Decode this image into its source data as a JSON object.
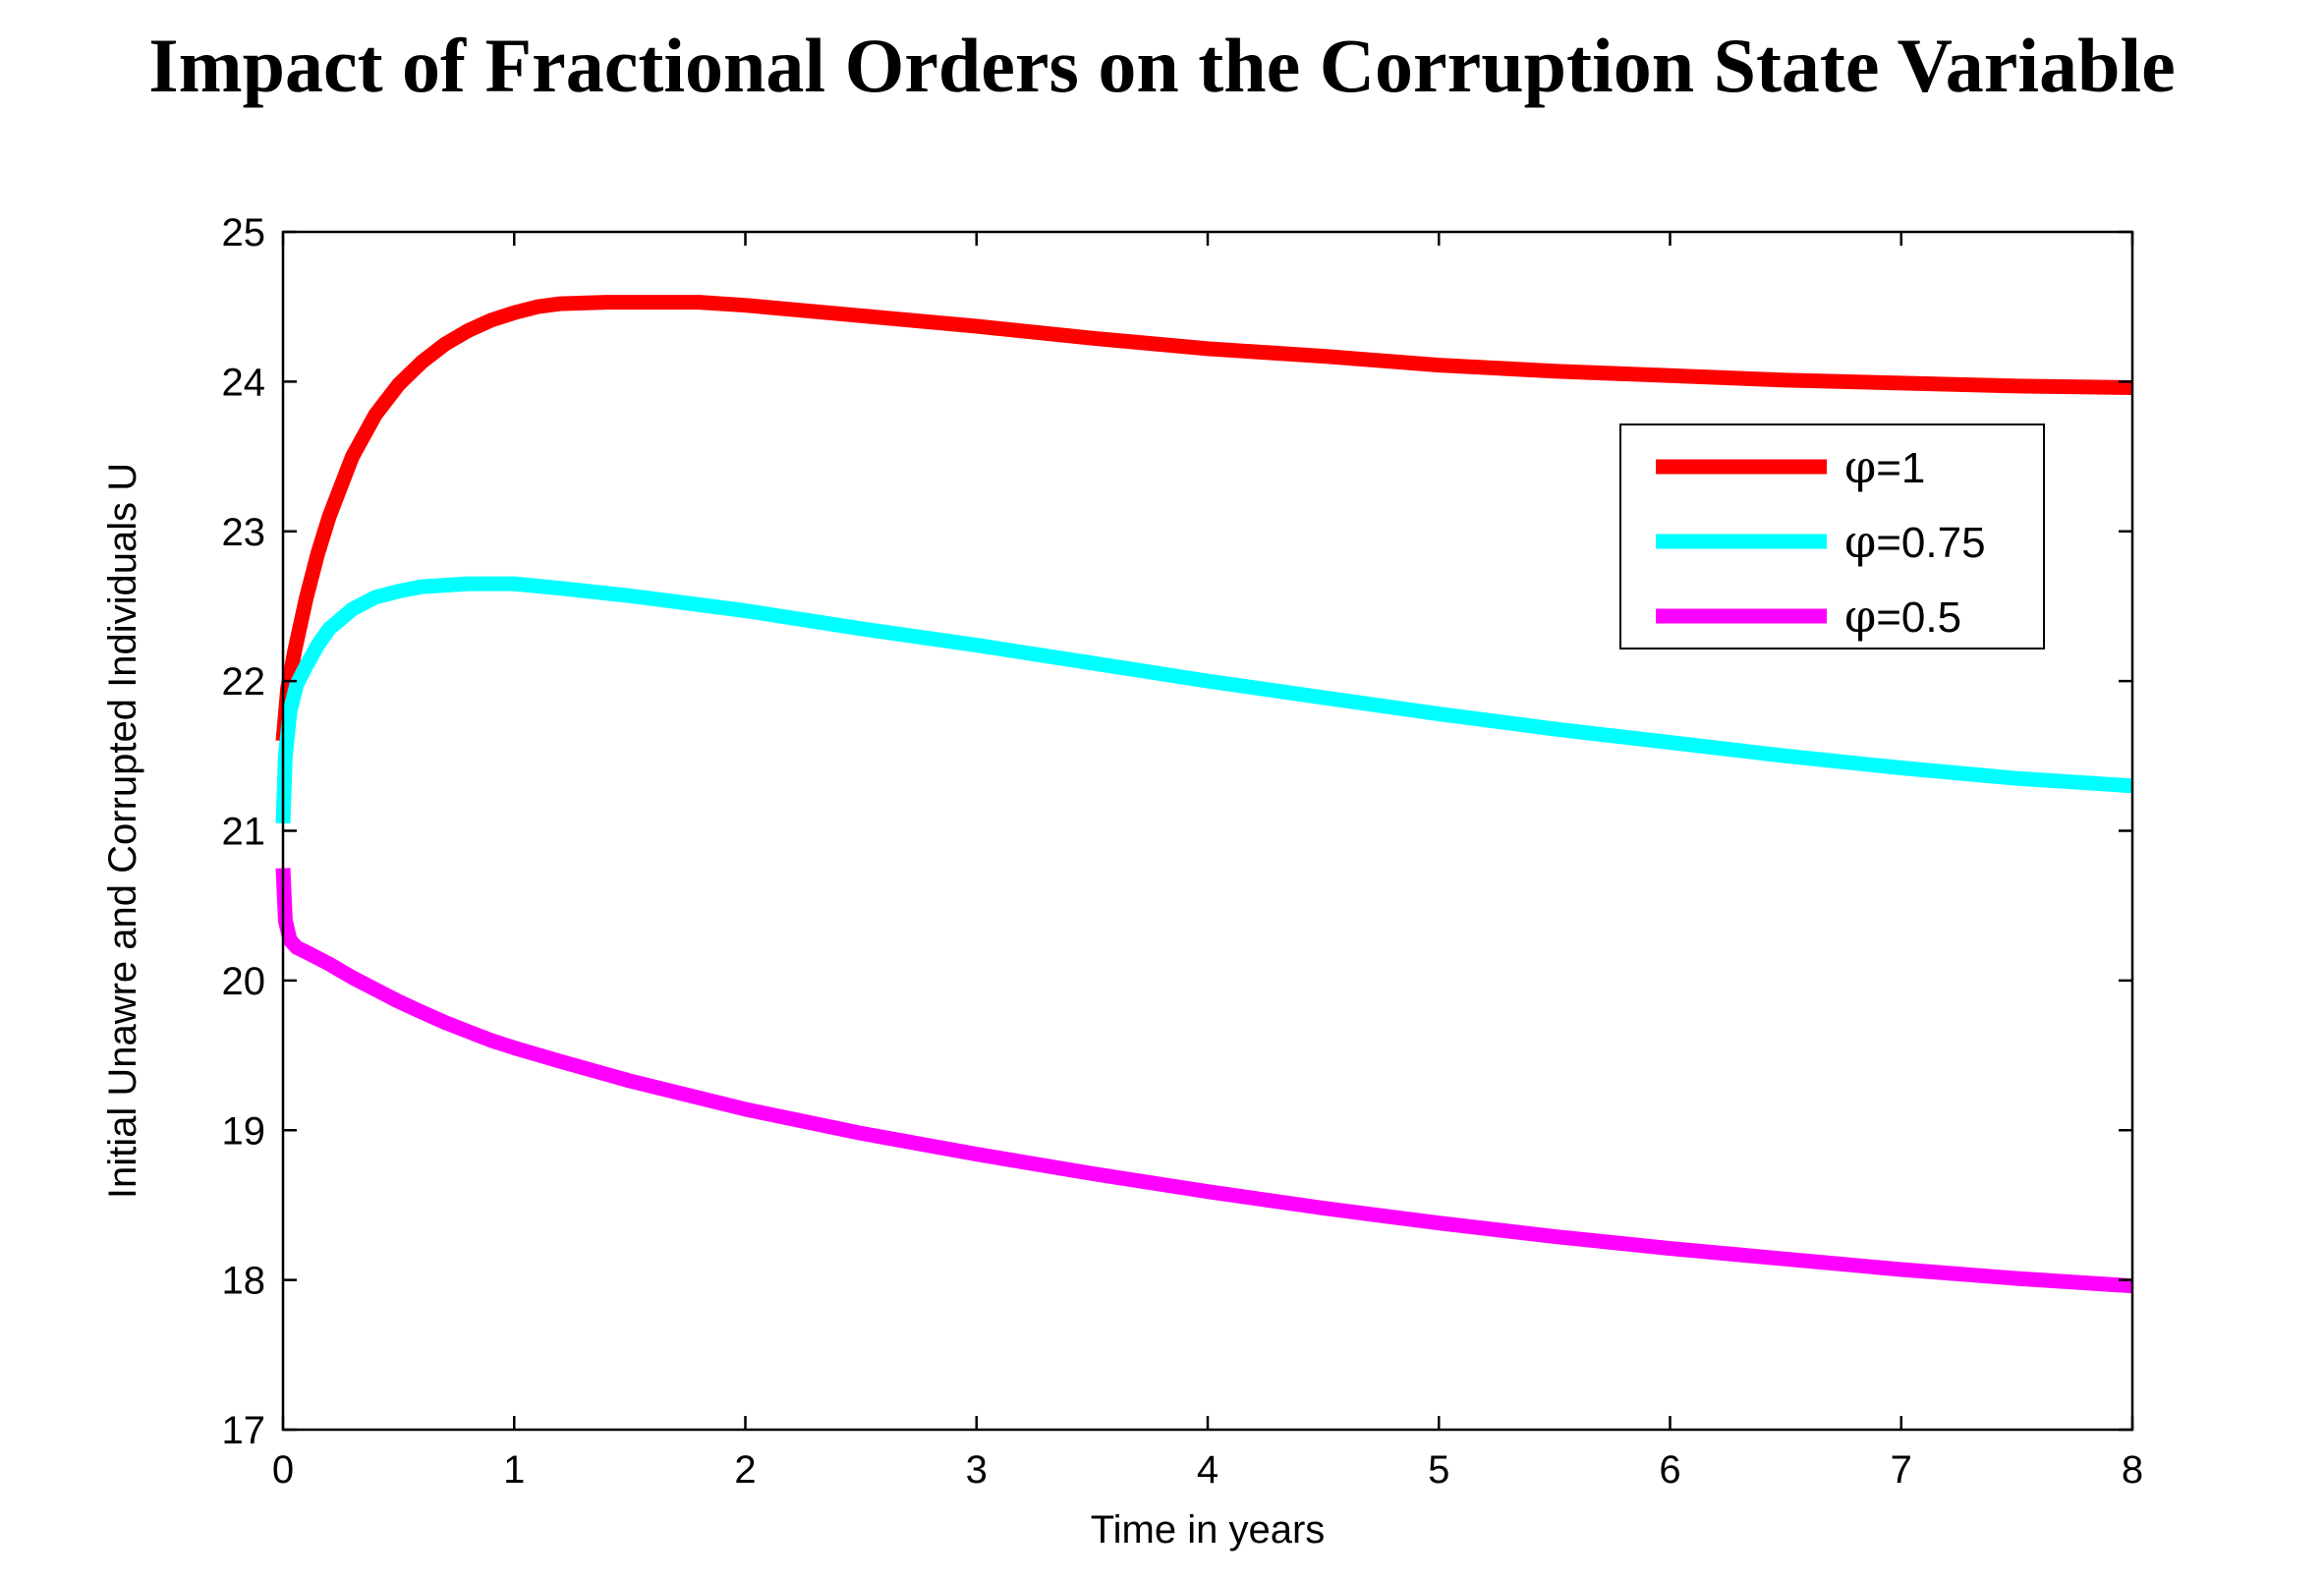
{
  "title": "Impact of Fractional Orders on the Corruption State Variable",
  "chart_data": {
    "type": "line",
    "title": "Impact of Fractional Orders on the Corruption State Variable",
    "xlabel": "Time in years",
    "ylabel": "Initial Unawre and Corrupted Individuals U",
    "xlim": [
      0,
      8
    ],
    "ylim": [
      17,
      25
    ],
    "xticks": [
      0,
      1,
      2,
      3,
      4,
      5,
      6,
      7,
      8
    ],
    "yticks": [
      17,
      18,
      19,
      20,
      21,
      22,
      23,
      24,
      25
    ],
    "grid": false,
    "legend_position": "top-right",
    "series": [
      {
        "name": "φ=1",
        "legend_symbol": "φ",
        "legend_value": "=1",
        "color": "#ff0000",
        "x": [
          0,
          0.02,
          0.05,
          0.1,
          0.15,
          0.2,
          0.3,
          0.4,
          0.5,
          0.6,
          0.7,
          0.8,
          0.9,
          1.0,
          1.1,
          1.2,
          1.4,
          1.6,
          1.8,
          2.0,
          2.5,
          3.0,
          3.5,
          4.0,
          4.5,
          5.0,
          5.5,
          6.0,
          6.5,
          7.0,
          7.5,
          8.0
        ],
        "y": [
          21.6,
          21.95,
          22.2,
          22.55,
          22.85,
          23.1,
          23.5,
          23.78,
          23.98,
          24.13,
          24.25,
          24.34,
          24.41,
          24.46,
          24.5,
          24.52,
          24.53,
          24.53,
          24.53,
          24.51,
          24.44,
          24.37,
          24.29,
          24.22,
          24.17,
          24.11,
          24.07,
          24.04,
          24.01,
          23.99,
          23.97,
          23.96
        ]
      },
      {
        "name": "φ=0.75",
        "legend_symbol": "φ",
        "legend_value": "=0.75",
        "color": "#00ffff",
        "x": [
          0,
          0.01,
          0.03,
          0.06,
          0.1,
          0.15,
          0.2,
          0.3,
          0.4,
          0.5,
          0.6,
          0.7,
          0.8,
          0.9,
          1.0,
          1.2,
          1.5,
          2.0,
          2.5,
          3.0,
          3.5,
          4.0,
          4.5,
          5.0,
          5.5,
          6.0,
          6.5,
          7.0,
          7.5,
          8.0
        ],
        "y": [
          21.05,
          21.5,
          21.8,
          21.98,
          22.1,
          22.24,
          22.35,
          22.48,
          22.56,
          22.6,
          22.63,
          22.64,
          22.65,
          22.65,
          22.65,
          22.62,
          22.57,
          22.47,
          22.35,
          22.24,
          22.12,
          22.0,
          21.89,
          21.78,
          21.68,
          21.59,
          21.5,
          21.42,
          21.35,
          21.3
        ]
      },
      {
        "name": "φ=0.5",
        "legend_symbol": "φ",
        "legend_value": "=0.5",
        "color": "#ff00ff",
        "x": [
          0,
          0.01,
          0.03,
          0.06,
          0.1,
          0.15,
          0.2,
          0.3,
          0.4,
          0.5,
          0.6,
          0.7,
          0.8,
          0.9,
          1.0,
          1.2,
          1.5,
          2.0,
          2.5,
          3.0,
          3.5,
          4.0,
          4.5,
          5.0,
          5.5,
          6.0,
          6.5,
          7.0,
          7.5,
          8.0
        ],
        "y": [
          20.75,
          20.4,
          20.27,
          20.22,
          20.19,
          20.15,
          20.11,
          20.02,
          19.94,
          19.86,
          19.79,
          19.72,
          19.66,
          19.6,
          19.55,
          19.46,
          19.33,
          19.14,
          18.98,
          18.84,
          18.71,
          18.59,
          18.48,
          18.38,
          18.29,
          18.21,
          18.14,
          18.07,
          18.01,
          17.96
        ]
      }
    ]
  }
}
